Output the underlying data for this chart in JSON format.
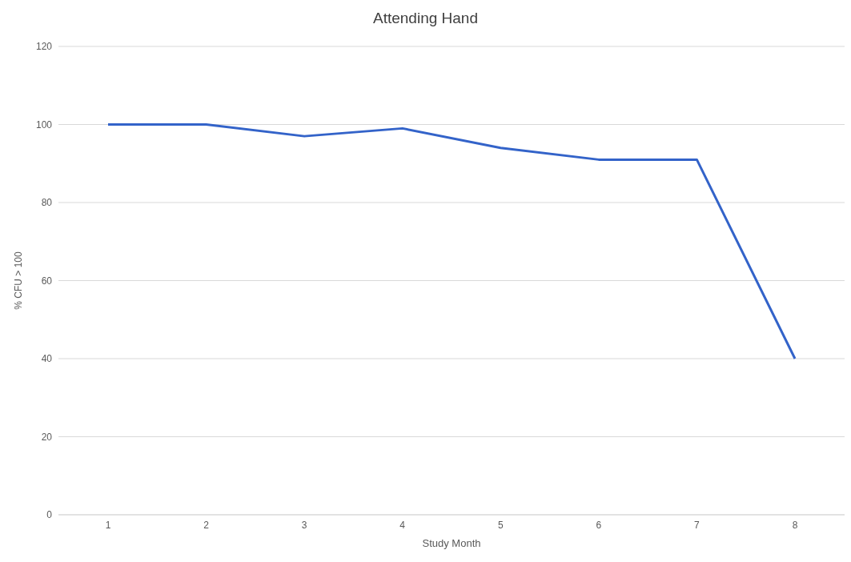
{
  "chart_data": {
    "type": "line",
    "title": "Attending Hand",
    "xlabel": "Study Month",
    "ylabel": "% CFU > 100",
    "categories": [
      "1",
      "2",
      "3",
      "4",
      "5",
      "6",
      "7",
      "8"
    ],
    "series": [
      {
        "color": "#3363c9",
        "values": [
          100,
          100,
          97,
          99,
          94,
          91,
          91,
          40
        ]
      }
    ],
    "ylim": [
      0,
      120
    ],
    "yticks": [
      0,
      20,
      40,
      60,
      80,
      100,
      120
    ],
    "grid": "y",
    "marker": "none",
    "line_style": "solid"
  }
}
